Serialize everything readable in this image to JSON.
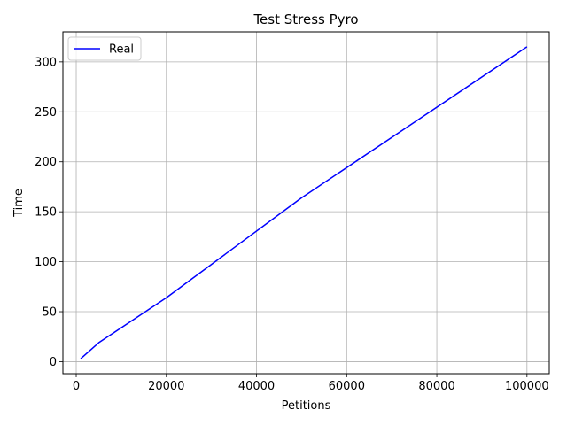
{
  "chart_data": {
    "type": "line",
    "title": "Test Stress Pyro",
    "xlabel": "Petitions",
    "ylabel": "Time",
    "xlim": [
      -2950,
      104950
    ],
    "ylim": [
      -12,
      330
    ],
    "xticks": [
      0,
      20000,
      40000,
      60000,
      80000,
      100000
    ],
    "xtick_labels": [
      "0",
      "20000",
      "40000",
      "60000",
      "80000",
      "100000"
    ],
    "yticks": [
      0,
      50,
      100,
      150,
      200,
      250,
      300
    ],
    "ytick_labels": [
      "0",
      "50",
      "100",
      "150",
      "200",
      "250",
      "300"
    ],
    "grid": true,
    "legend_position": "top-left",
    "series": [
      {
        "name": "Real",
        "color": "#0000ff",
        "x": [
          1000,
          5000,
          10000,
          20000,
          50000,
          100000
        ],
        "y": [
          3,
          19,
          34,
          64,
          164,
          315
        ]
      }
    ]
  }
}
